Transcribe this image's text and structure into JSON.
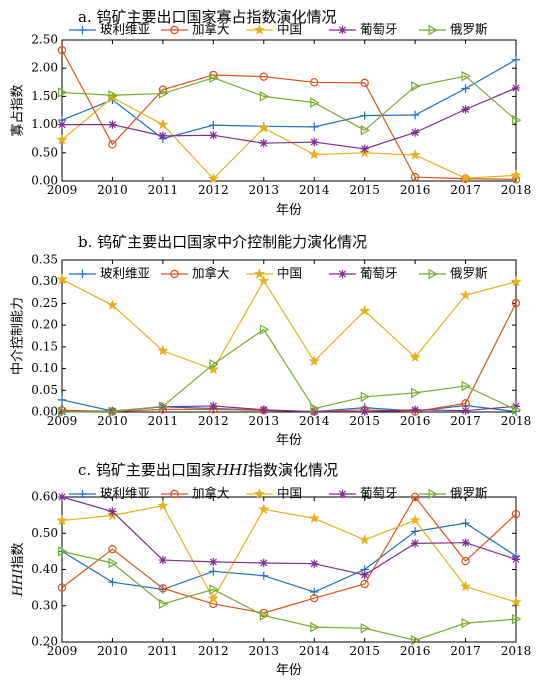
{
  "chart_data": [
    {
      "type": "line",
      "title": "a. 钨矿主要出口国家寡占指数演化情况",
      "xlabel": "年份",
      "ylabel": "寡占指数",
      "x": [
        2009,
        2010,
        2011,
        2012,
        2013,
        2014,
        2015,
        2016,
        2017,
        2018
      ],
      "ylim": [
        0,
        2.5
      ],
      "yticks": [
        "0.00",
        "0.50",
        "1.00",
        "1.50",
        "2.00",
        "2.50"
      ],
      "legend": "top",
      "series": [
        {
          "name": "玻利维亚",
          "marker": "plus",
          "color": "#1f6fbf",
          "values": [
            1.08,
            1.44,
            0.75,
            0.99,
            0.97,
            0.96,
            1.16,
            1.17,
            1.64,
            2.15
          ]
        },
        {
          "name": "加拿大",
          "marker": "circle",
          "color": "#d9541a",
          "values": [
            2.32,
            0.65,
            1.62,
            1.88,
            1.85,
            1.75,
            1.74,
            0.07,
            0.04,
            0.03
          ]
        },
        {
          "name": "中国",
          "marker": "star",
          "color": "#e7b020",
          "values": [
            0.73,
            1.48,
            1.0,
            0.04,
            0.94,
            0.47,
            0.5,
            0.46,
            0.05,
            0.1
          ]
        },
        {
          "name": "葡萄牙",
          "marker": "asterisk",
          "color": "#7e2f8e",
          "values": [
            1.0,
            1.0,
            0.8,
            0.81,
            0.67,
            0.69,
            0.57,
            0.86,
            1.27,
            1.65
          ]
        },
        {
          "name": "俄罗斯",
          "marker": "triangle",
          "color": "#77ac30",
          "values": [
            1.57,
            1.52,
            1.55,
            1.83,
            1.5,
            1.39,
            0.9,
            1.68,
            1.86,
            1.08
          ]
        }
      ]
    },
    {
      "type": "line",
      "title": "b. 钨矿主要出口国家中介控制能力演化情况",
      "xlabel": "年份",
      "ylabel": "中介控制能力",
      "x": [
        2009,
        2010,
        2011,
        2012,
        2013,
        2014,
        2015,
        2016,
        2017,
        2018
      ],
      "ylim": [
        0,
        0.35
      ],
      "yticks": [
        "0.00",
        "0.05",
        "0.10",
        "0.15",
        "0.20",
        "0.25",
        "0.30",
        "0.35"
      ],
      "legend": "top",
      "series": [
        {
          "name": "玻利维亚",
          "marker": "plus",
          "color": "#1f6fbf",
          "values": [
            0.028,
            0.002,
            0.012,
            0.008,
            0.004,
            0.001,
            0.01,
            0.002,
            0.015,
            0.001
          ]
        },
        {
          "name": "加拿大",
          "marker": "circle",
          "color": "#d9541a",
          "values": [
            0.004,
            0.001,
            0.006,
            0.006,
            0.004,
            0.001,
            0.005,
            0.001,
            0.02,
            0.251
          ]
        },
        {
          "name": "中国",
          "marker": "star",
          "color": "#e7b020",
          "values": [
            0.305,
            0.246,
            0.141,
            0.098,
            0.302,
            0.117,
            0.233,
            0.126,
            0.269,
            0.3
          ]
        },
        {
          "name": "葡萄牙",
          "marker": "asterisk",
          "color": "#7e2f8e",
          "values": [
            0.001,
            0.002,
            0.012,
            0.014,
            0.005,
            0.001,
            0.001,
            0.005,
            0.003,
            0.013
          ]
        },
        {
          "name": "俄罗斯",
          "marker": "triangle",
          "color": "#77ac30",
          "values": [
            0.0,
            0.001,
            0.013,
            0.11,
            0.19,
            0.008,
            0.035,
            0.044,
            0.06,
            0.005
          ]
        }
      ]
    },
    {
      "type": "line",
      "title": "c. 钨矿主要出口国家HHI指数演化情况",
      "title_prefix": "c. 钨矿主要出口国家",
      "title_em": "HHI",
      "title_suffix": "指数演化情况",
      "xlabel": "年份",
      "ylabel": "HHI指数",
      "ylabel_em": "HHI",
      "ylabel_rest": "指数",
      "x": [
        2009,
        2010,
        2011,
        2012,
        2013,
        2014,
        2015,
        2016,
        2017,
        2018
      ],
      "ylim": [
        0.2,
        0.6
      ],
      "yticks": [
        "0.20",
        "0.30",
        "0.40",
        "0.50",
        "0.60"
      ],
      "legend": "top",
      "series": [
        {
          "name": "玻利维亚",
          "marker": "plus",
          "color": "#1f6fbf",
          "values": [
            0.45,
            0.365,
            0.345,
            0.395,
            0.383,
            0.338,
            0.4,
            0.505,
            0.528,
            0.437
          ]
        },
        {
          "name": "加拿大",
          "marker": "circle",
          "color": "#d9541a",
          "values": [
            0.35,
            0.456,
            0.348,
            0.305,
            0.28,
            0.321,
            0.36,
            0.6,
            0.423,
            0.553
          ]
        },
        {
          "name": "中国",
          "marker": "star",
          "color": "#e7b020",
          "values": [
            0.535,
            0.549,
            0.576,
            0.32,
            0.566,
            0.541,
            0.482,
            0.536,
            0.353,
            0.31
          ]
        },
        {
          "name": "葡萄牙",
          "marker": "asterisk",
          "color": "#7e2f8e",
          "values": [
            0.6,
            0.56,
            0.426,
            0.421,
            0.418,
            0.416,
            0.385,
            0.472,
            0.474,
            0.428
          ]
        },
        {
          "name": "俄罗斯",
          "marker": "triangle",
          "color": "#77ac30",
          "values": [
            0.45,
            0.418,
            0.305,
            0.345,
            0.273,
            0.241,
            0.238,
            0.205,
            0.252,
            0.263
          ]
        }
      ]
    }
  ]
}
